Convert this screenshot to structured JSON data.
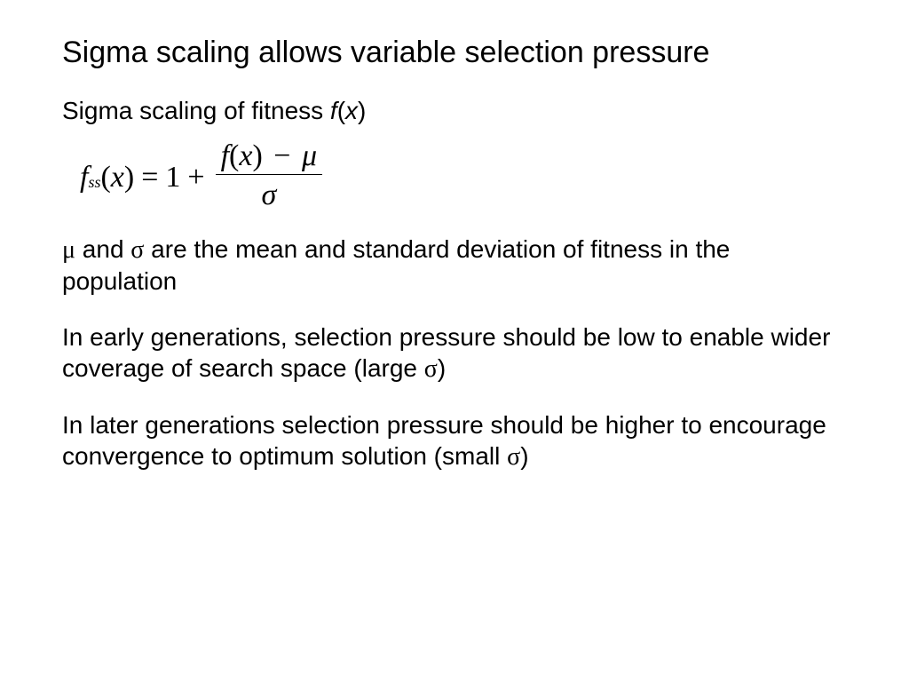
{
  "title": "Sigma scaling allows variable selection pressure",
  "subtitle_prefix": "Sigma scaling of fitness ",
  "subtitle_fx_f": "f",
  "subtitle_fx_open": "(",
  "subtitle_fx_x": "x",
  "subtitle_fx_close": ")",
  "formula": {
    "f": "f",
    "sub": "ss",
    "open": "(",
    "x": "x",
    "close": ")",
    "eq": "=",
    "one": "1",
    "plus": "+",
    "num_f": "f",
    "num_open": "(",
    "num_x": "x",
    "num_close": ")",
    "num_minus": "−",
    "mu": "μ",
    "sigma": "σ"
  },
  "para1_mu": "μ",
  "para1_mid": " and ",
  "para1_sigma": "σ",
  "para1_rest": " are the mean and standard deviation of fitness in the population",
  "para2_pre": "In early generations, selection pressure should be low to enable wider coverage of search space (large ",
  "para2_sigma": "σ",
  "para2_post": ")",
  "para3_pre": "In later generations selection pressure should be higher to encourage convergence to optimum solution (small ",
  "para3_sigma": "σ",
  "para3_post": ")",
  "style": {
    "background_color": "#ffffff",
    "text_color": "#000000",
    "title_fontsize": 34,
    "body_fontsize": 28,
    "formula_fontsize": 34,
    "font_family_body": "Arial",
    "font_family_math": "Times New Roman"
  }
}
